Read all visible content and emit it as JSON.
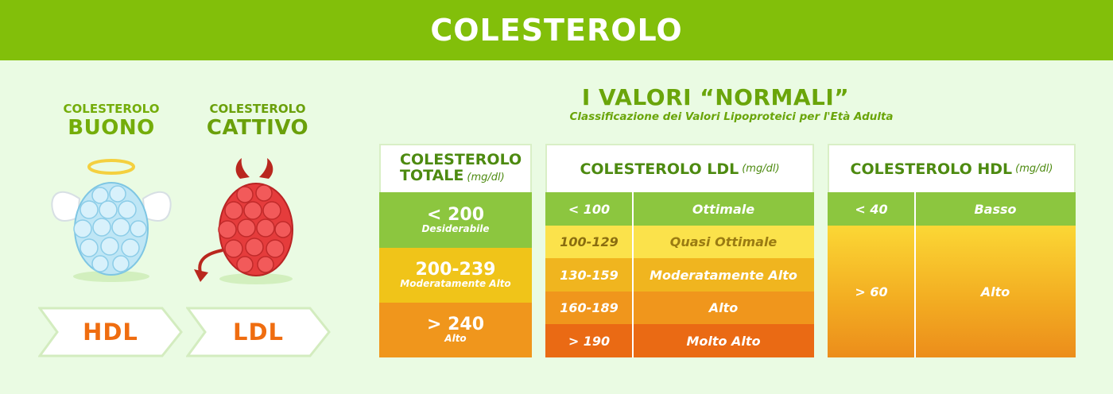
{
  "header": {
    "title": "COLESTEROLO"
  },
  "left": {
    "good": {
      "small": "COLESTEROLO",
      "big": "BUONO",
      "tag": "HDL"
    },
    "bad": {
      "small": "COLESTEROLO",
      "big": "CATTIVO",
      "tag": "LDL"
    }
  },
  "right": {
    "title": "I VALORI “NORMALI”",
    "subtitle": "Classificazione dei Valori Lipoproteici per l'Età Adulta",
    "total": {
      "head_line1": "COLESTEROLO",
      "head_line2": "TOTALE",
      "unit": "(mg/dl)",
      "rows": [
        {
          "value": "< 200",
          "desc": "Desiderabile"
        },
        {
          "value": "200-239",
          "desc": "Moderatamente Alto"
        },
        {
          "value": "> 240",
          "desc": "Alto"
        }
      ]
    },
    "ldl": {
      "head": "COLESTEROLO LDL",
      "unit": "(mg/dl)",
      "rows": [
        {
          "range": "< 100",
          "label": "Ottimale"
        },
        {
          "range": "100-129",
          "label": "Quasi Ottimale"
        },
        {
          "range": "130-159",
          "label": "Moderatamente Alto"
        },
        {
          "range": "160-189",
          "label": "Alto"
        },
        {
          "range": "> 190",
          "label": "Molto Alto"
        }
      ]
    },
    "hdl": {
      "head": "COLESTEROLO HDL",
      "unit": "(mg/dl)",
      "rows": [
        {
          "range": "< 40",
          "label": "Basso"
        },
        {
          "range": "> 60",
          "label": "Alto"
        }
      ]
    }
  },
  "colors": {
    "brand_green": "#82bf0a",
    "row_green": "#8cc63f",
    "row_yellow": "#f0c419",
    "row_orange": "#f08a1c",
    "row_red": "#ea5a12"
  }
}
